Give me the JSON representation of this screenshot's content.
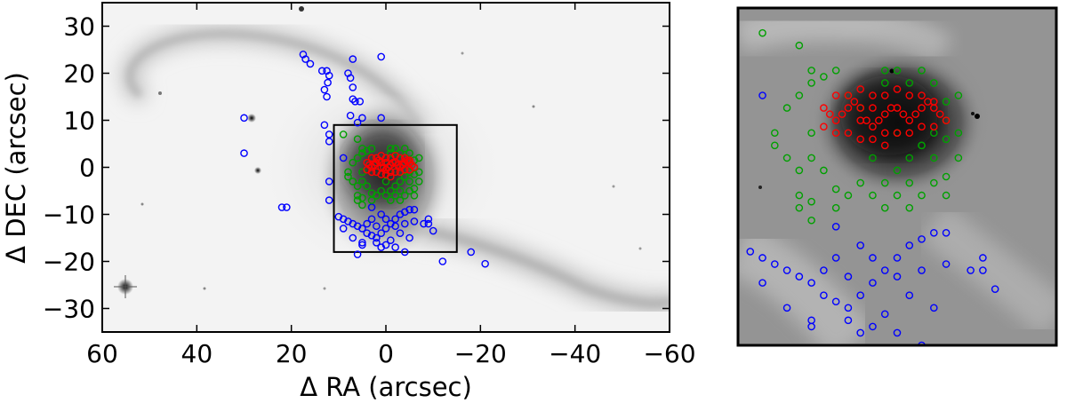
{
  "chart_data": [
    {
      "type": "scatter",
      "panel": "main",
      "xlabel": "Δ RA (arcsec)",
      "ylabel": "Δ DEC (arcsec)",
      "xlim": [
        60,
        -60
      ],
      "ylim": [
        -35,
        35
      ],
      "x_inverted": true,
      "xticks": [
        60,
        40,
        20,
        0,
        -20,
        -40,
        -60
      ],
      "yticks": [
        30,
        20,
        10,
        0,
        -10,
        -20,
        -30
      ],
      "xtick_labels": [
        "60",
        "40",
        "20",
        "0",
        "−20",
        "−40",
        "−60"
      ],
      "ytick_labels": [
        "30",
        "20",
        "10",
        "0",
        "−10",
        "−20",
        "−30"
      ],
      "background": "grayscale galaxy image",
      "marker": "open circle",
      "grid": false,
      "zoom_box": {
        "ra": [
          11,
          -15
        ],
        "dec": [
          -18,
          9
        ]
      },
      "series": [
        {
          "color": "#0000ff",
          "points": [
            [
              17.5,
              24
            ],
            [
              17,
              23
            ],
            [
              16,
              22
            ],
            [
              13.5,
              20.5
            ],
            [
              12.5,
              20.5
            ],
            [
              12,
              19.5
            ],
            [
              12.3,
              18
            ],
            [
              13,
              16.5
            ],
            [
              12.5,
              15
            ],
            [
              8,
              20
            ],
            [
              7,
              17
            ],
            [
              7,
              23
            ],
            [
              1,
              23.5
            ],
            [
              7.5,
              19
            ],
            [
              7,
              14.5
            ],
            [
              6.5,
              14
            ],
            [
              5.5,
              14
            ],
            [
              7.5,
              11
            ],
            [
              6,
              9.5
            ],
            [
              5,
              10.5
            ],
            [
              1,
              10.5
            ],
            [
              30,
              10.5
            ],
            [
              13,
              9
            ],
            [
              12,
              7
            ],
            [
              12,
              5.5
            ],
            [
              9,
              2
            ],
            [
              30,
              3
            ],
            [
              12,
              -3
            ],
            [
              12,
              -7
            ],
            [
              10,
              -10.5
            ],
            [
              9,
              -11
            ],
            [
              8,
              -11.5
            ],
            [
              7,
              -12
            ],
            [
              6,
              -12.5
            ],
            [
              5,
              -13
            ],
            [
              4,
              -14
            ],
            [
              3,
              -14.5
            ],
            [
              2,
              -15
            ],
            [
              1,
              -14
            ],
            [
              0,
              -13
            ],
            [
              -1,
              -12
            ],
            [
              -2,
              -11
            ],
            [
              -3,
              -10
            ],
            [
              -4,
              -9.5
            ],
            [
              -5,
              -9
            ],
            [
              -6,
              -9
            ],
            [
              4,
              -12
            ],
            [
              2,
              -12.5
            ],
            [
              0,
              -11
            ],
            [
              -2,
              -12.5
            ],
            [
              -4,
              -12
            ],
            [
              -6,
              -11.5
            ],
            [
              3,
              -11
            ],
            [
              1,
              -10
            ],
            [
              -3,
              -14
            ],
            [
              -1,
              -15.5
            ],
            [
              -5,
              -15
            ],
            [
              0,
              -16.5
            ],
            [
              -2,
              -17
            ],
            [
              5,
              -16
            ],
            [
              7,
              -15
            ],
            [
              9,
              -13
            ],
            [
              -8,
              -12
            ],
            [
              -9,
              -11
            ],
            [
              -10,
              -13.5
            ],
            [
              -9,
              -12
            ],
            [
              3,
              -8.5
            ],
            [
              6,
              -18.5
            ],
            [
              -4,
              -18
            ],
            [
              22,
              -8.5
            ],
            [
              21,
              -8.5
            ],
            [
              -18,
              -18
            ],
            [
              -21,
              -20.5
            ],
            [
              -12,
              -20
            ],
            [
              5,
              -16.5
            ],
            [
              2,
              -16
            ],
            [
              1,
              -17
            ]
          ]
        },
        {
          "color": "#00a000",
          "points": [
            [
              9,
              7
            ],
            [
              6,
              6
            ],
            [
              5,
              4
            ],
            [
              5,
              3
            ],
            [
              4,
              3.5
            ],
            [
              3,
              4
            ],
            [
              2,
              2
            ],
            [
              1,
              1
            ],
            [
              -1,
              3
            ],
            [
              -1,
              4
            ],
            [
              -2,
              4
            ],
            [
              -3,
              3
            ],
            [
              -4,
              4
            ],
            [
              -5,
              3
            ],
            [
              -6,
              1.5
            ],
            [
              -6,
              0
            ],
            [
              -7,
              -1
            ],
            [
              -6,
              -1.5
            ],
            [
              -7,
              -3
            ],
            [
              -6,
              -4.5
            ],
            [
              -5,
              -3
            ],
            [
              -4,
              -2
            ],
            [
              -3,
              -3
            ],
            [
              -3,
              -5
            ],
            [
              -2,
              -6
            ],
            [
              -2,
              -4
            ],
            [
              -1,
              -5
            ],
            [
              0,
              -6
            ],
            [
              1,
              -5
            ],
            [
              2,
              -6
            ],
            [
              3,
              -5.5
            ],
            [
              4,
              -4
            ],
            [
              5,
              -3
            ],
            [
              6,
              -4
            ],
            [
              7,
              -3
            ],
            [
              8,
              -2
            ],
            [
              8,
              -1
            ],
            [
              7,
              1
            ],
            [
              6,
              2
            ],
            [
              5,
              -1
            ],
            [
              -7,
              2
            ],
            [
              -5,
              -1
            ],
            [
              -4,
              -6
            ],
            [
              -3,
              -7
            ],
            [
              -1,
              -7
            ],
            [
              3,
              -7
            ],
            [
              5,
              -6.5
            ],
            [
              6,
              -6
            ],
            [
              6,
              -7
            ],
            [
              5,
              -8
            ],
            [
              -5,
              -5
            ],
            [
              -6,
              -6
            ],
            [
              0,
              -3
            ],
            [
              -2,
              -1
            ],
            [
              -4,
              -2
            ]
          ]
        },
        {
          "color": "#ff0000",
          "points": [
            [
              4,
              1
            ],
            [
              3.5,
              0.5
            ],
            [
              3,
              0
            ],
            [
              2.5,
              0.5
            ],
            [
              2,
              1
            ],
            [
              1.5,
              1.5
            ],
            [
              1,
              1
            ],
            [
              0.5,
              0
            ],
            [
              0,
              -0.5
            ],
            [
              -0.5,
              0
            ],
            [
              -1,
              0.5
            ],
            [
              -1.5,
              1
            ],
            [
              -2,
              1
            ],
            [
              -2.5,
              0.5
            ],
            [
              -3,
              0
            ],
            [
              -3.5,
              0.5
            ],
            [
              -4,
              1
            ],
            [
              -4.5,
              1.5
            ],
            [
              -5,
              1
            ],
            [
              -5.5,
              0.5
            ],
            [
              -6,
              0
            ],
            [
              3,
              -1
            ],
            [
              2,
              -1
            ],
            [
              1,
              -1.5
            ],
            [
              0,
              -1.5
            ],
            [
              -1,
              -1
            ],
            [
              -2,
              -1
            ],
            [
              -3,
              -1
            ],
            [
              -4,
              -0.5
            ],
            [
              -5,
              -0.5
            ],
            [
              2,
              2
            ],
            [
              1,
              2.5
            ],
            [
              0,
              2
            ],
            [
              -1,
              2
            ],
            [
              -2,
              2.5
            ],
            [
              -3,
              2
            ],
            [
              -4,
              2
            ],
            [
              -5,
              1.5
            ],
            [
              4,
              -0.5
            ],
            [
              3,
              2
            ],
            [
              0,
              1
            ],
            [
              -1,
              -2
            ],
            [
              1,
              0
            ]
          ]
        }
      ]
    },
    {
      "type": "scatter",
      "panel": "inset",
      "xlim": [
        11,
        -15
      ],
      "ylim": [
        -18,
        9
      ],
      "background": "grayscale galaxy image (zoomed)",
      "marker": "open circle",
      "axes_visible": false
    }
  ]
}
